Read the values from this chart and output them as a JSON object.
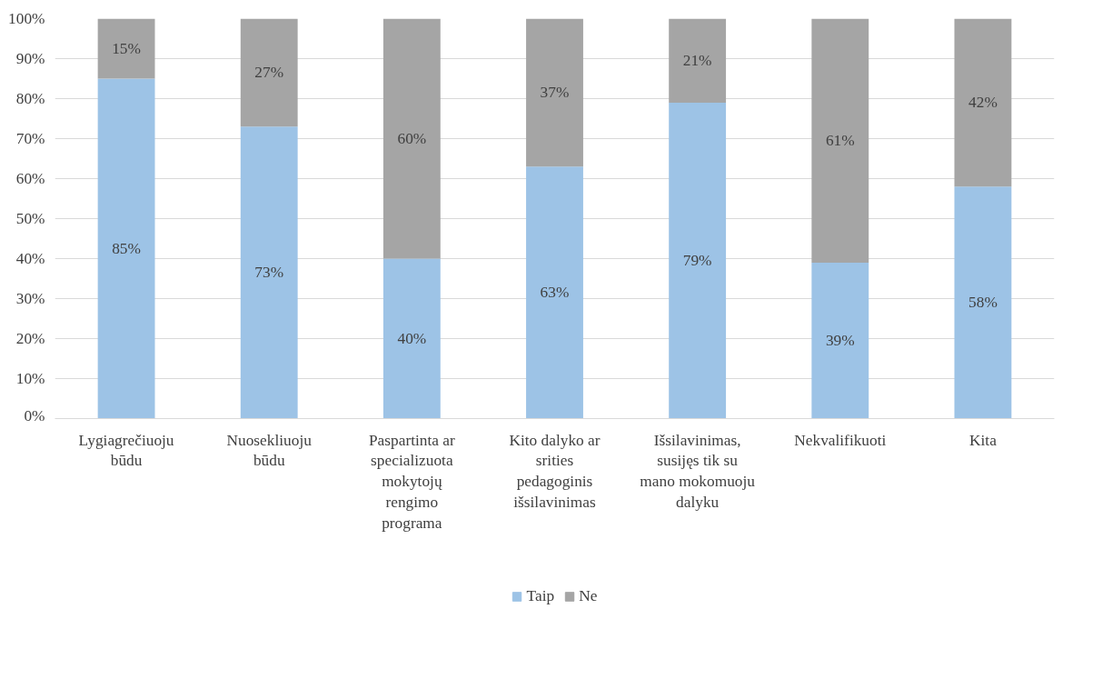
{
  "chart_data": {
    "type": "bar",
    "stacked": true,
    "categories": [
      "Lygiagrečiuoju būdu",
      "Nuosekliuoju būdu",
      "Paspartinta ar specializuota mokytojų rengimo programa",
      "Kito dalyko ar srities pedagoginis išsilavinimas",
      "Išsilavinimas, susijęs tik su mano mokomuoju dalyku",
      "Nekvalifikuoti",
      "Kita"
    ],
    "series": [
      {
        "name": "Taip",
        "color": "#9dc3e6",
        "values": [
          85,
          73,
          40,
          63,
          79,
          39,
          58
        ],
        "value_labels": [
          "85%",
          "73%",
          "40%",
          "63%",
          "79%",
          "39%",
          "58%"
        ]
      },
      {
        "name": "Ne",
        "color": "#a5a5a5",
        "values": [
          15,
          27,
          60,
          37,
          21,
          61,
          42
        ],
        "value_labels": [
          "15%",
          "27%",
          "60%",
          "37%",
          "21%",
          "61%",
          "42%"
        ]
      }
    ],
    "ylim": [
      0,
      100
    ],
    "yticks": [
      {
        "value": 0,
        "label": "0%"
      },
      {
        "value": 10,
        "label": "10%"
      },
      {
        "value": 20,
        "label": "20%"
      },
      {
        "value": 30,
        "label": "30%"
      },
      {
        "value": 40,
        "label": "40%"
      },
      {
        "value": 50,
        "label": "50%"
      },
      {
        "value": 60,
        "label": "60%"
      },
      {
        "value": 70,
        "label": "70%"
      },
      {
        "value": 80,
        "label": "80%"
      },
      {
        "value": 90,
        "label": "90%"
      },
      {
        "value": 100,
        "label": "100%"
      }
    ],
    "grid": "y",
    "legend": "bottom"
  }
}
